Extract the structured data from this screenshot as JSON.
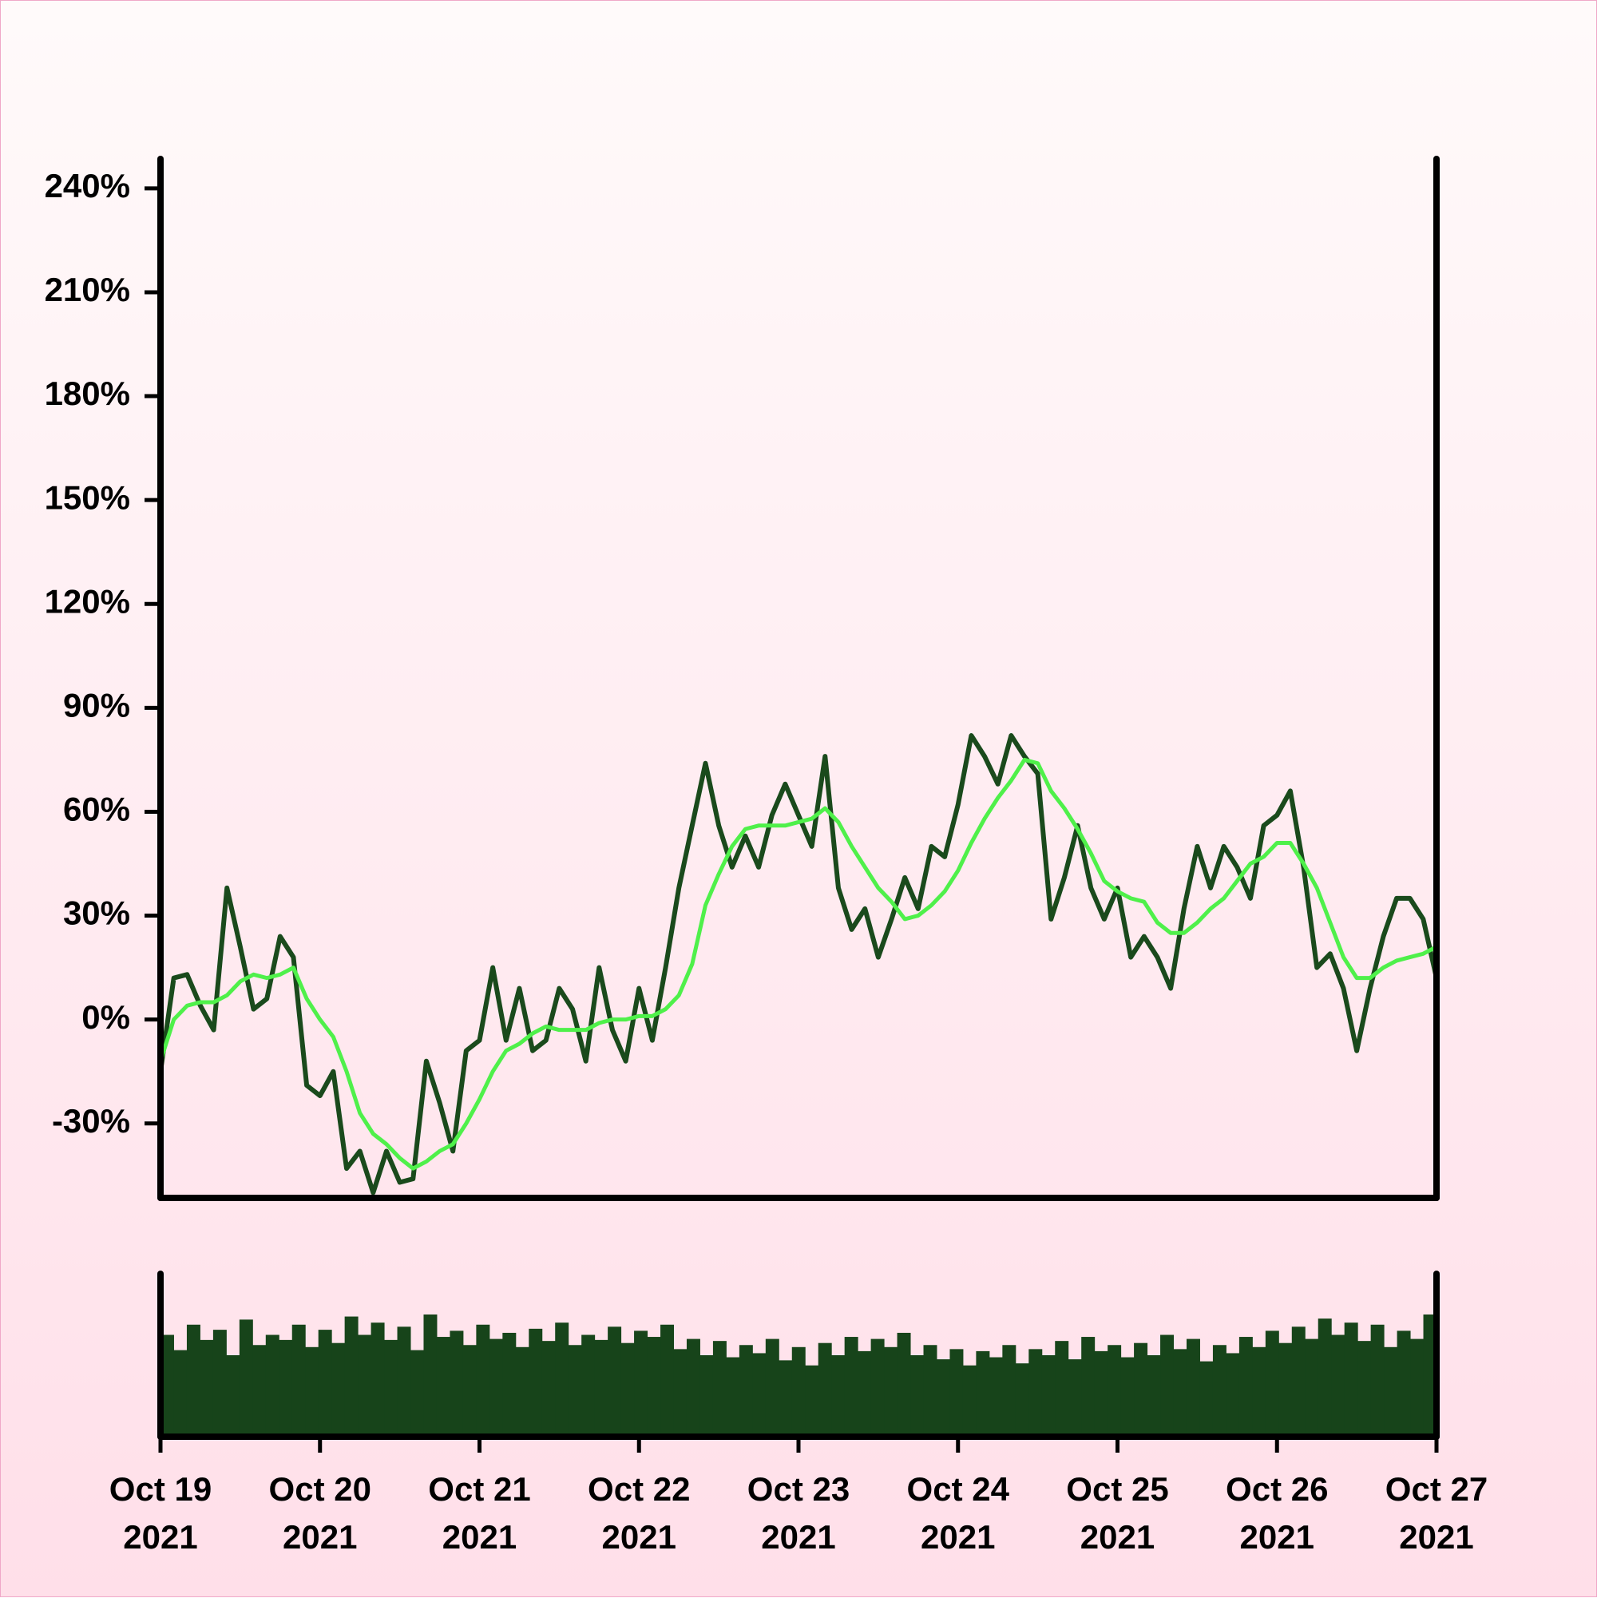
{
  "chart_data": {
    "type": "line",
    "xlim": [
      "2021-10-19",
      "2021-10-27"
    ],
    "xticks": [
      {
        "value": "2021-10-19",
        "label": "Oct 19\n2021"
      },
      {
        "value": "2021-10-20",
        "label": "Oct 20\n2021"
      },
      {
        "value": "2021-10-21",
        "label": "Oct 21\n2021"
      },
      {
        "value": "2021-10-22",
        "label": "Oct 22\n2021"
      },
      {
        "value": "2021-10-23",
        "label": "Oct 23\n2021"
      },
      {
        "value": "2021-10-24",
        "label": "Oct 24\n2021"
      },
      {
        "value": "2021-10-25",
        "label": "Oct 25\n2021"
      },
      {
        "value": "2021-10-26",
        "label": "Oct 26\n2021"
      },
      {
        "value": "2021-10-27",
        "label": "Oct 27\n2021"
      }
    ],
    "ylim": [
      -51.5,
      248.5
    ],
    "yticks": [
      {
        "value": -30,
        "label": "-30%"
      },
      {
        "value": 0,
        "label": "0%"
      },
      {
        "value": 30,
        "label": "30%"
      },
      {
        "value": 60,
        "label": "60%"
      },
      {
        "value": 90,
        "label": "90%"
      },
      {
        "value": 120,
        "label": "120%"
      },
      {
        "value": 150,
        "label": "150%"
      },
      {
        "value": 180,
        "label": "180%"
      },
      {
        "value": 210,
        "label": "210%"
      },
      {
        "value": 240,
        "label": "240%"
      }
    ],
    "series": [
      {
        "color": "#1a4a1c",
        "values": [
          -15,
          12,
          13,
          4,
          -3,
          38,
          21,
          3,
          6,
          24,
          18,
          -19,
          -22,
          -15,
          -43,
          -38,
          -50,
          -38,
          -47,
          -46,
          -12,
          -24,
          -38,
          -9,
          -6,
          15,
          -6,
          9,
          -9,
          -6,
          9,
          3,
          -12,
          15,
          -3,
          -12,
          9,
          -6,
          15,
          38,
          56,
          74,
          56,
          44,
          53,
          44,
          59,
          68,
          59,
          50,
          76,
          38,
          26,
          32,
          18,
          29,
          41,
          32,
          50,
          47,
          62,
          82,
          76,
          68,
          82,
          76,
          71,
          29,
          41,
          56,
          38,
          29,
          38,
          18,
          24,
          18,
          9,
          32,
          50,
          38,
          50,
          44,
          35,
          56,
          59,
          66,
          44,
          15,
          19,
          9,
          -9,
          9,
          24,
          35,
          35,
          29,
          12
        ]
      },
      {
        "color": "#4ff04a",
        "values": [
          -12,
          0,
          4,
          5,
          5,
          7,
          11,
          13,
          12,
          13,
          15,
          6,
          0,
          -5,
          -15,
          -27,
          -33,
          -36,
          -40,
          -43,
          -41,
          -38,
          -36,
          -30,
          -23,
          -15,
          -9,
          -7,
          -4,
          -2,
          -3,
          -3,
          -3,
          -1,
          0,
          0,
          1,
          1,
          3,
          7,
          16,
          33,
          42,
          50,
          55,
          56,
          56,
          56,
          57,
          58,
          61,
          57,
          50,
          44,
          38,
          34,
          29,
          30,
          33,
          37,
          43,
          51,
          58,
          64,
          69,
          75,
          74,
          66,
          61,
          55,
          48,
          40,
          37,
          35,
          34,
          28,
          25,
          25,
          28,
          32,
          35,
          40,
          45,
          47,
          51,
          51,
          45,
          38,
          28,
          18,
          12,
          12,
          15,
          17,
          18,
          19,
          21
        ]
      }
    ],
    "volume": {
      "type": "bar",
      "color": "#17441a",
      "ylim": [
        0,
        160
      ],
      "values": [
        100,
        85,
        110,
        95,
        105,
        80,
        115,
        90,
        100,
        95,
        110,
        88,
        105,
        92,
        118,
        100,
        112,
        95,
        108,
        85,
        120,
        98,
        104,
        90,
        110,
        96,
        102,
        88,
        106,
        94,
        112,
        90,
        100,
        95,
        108,
        92,
        104,
        98,
        110,
        86,
        96,
        80,
        94,
        78,
        90,
        82,
        96,
        75,
        88,
        70,
        92,
        80,
        98,
        84,
        96,
        88,
        102,
        80,
        90,
        76,
        86,
        70,
        84,
        78,
        90,
        72,
        86,
        80,
        94,
        76,
        98,
        84,
        90,
        78,
        92,
        80,
        100,
        86,
        96,
        74,
        90,
        82,
        98,
        88,
        104,
        92,
        108,
        96,
        116,
        100,
        112,
        94,
        110,
        88,
        104,
        96,
        120
      ]
    }
  }
}
